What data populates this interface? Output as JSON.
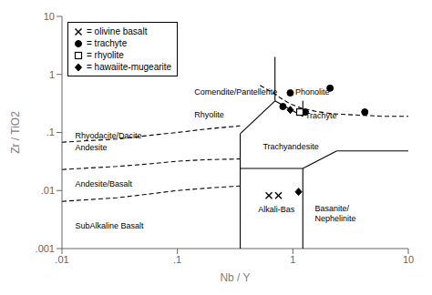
{
  "chart_data": {
    "type": "scatter",
    "xlabel": "Nb / Y",
    "ylabel": "Zr / TiO2",
    "log": true,
    "xlim": [
      0.01,
      10
    ],
    "ylim": [
      0.001,
      10
    ],
    "xticks": [
      {
        "value": 0.01,
        "label": ".01"
      },
      {
        "value": 0.1,
        "label": ".1"
      },
      1,
      10
    ],
    "yticks": [
      {
        "value": 0.001,
        "label": ".001"
      },
      {
        "value": 0.01,
        "label": ".01"
      },
      {
        "value": 0.1,
        "label": ".1"
      },
      1,
      10
    ],
    "grid": false,
    "legend": "upper left",
    "series": [
      {
        "type": "line",
        "line_style": "solid",
        "color": "#000000",
        "x": [
          0.35,
          0.35
        ],
        "values": [
          0.001,
          0.095
        ]
      },
      {
        "type": "line",
        "line_style": "solid",
        "color": "#000000",
        "x": [
          0.35,
          0.7
        ],
        "values": [
          0.095,
          0.35
        ]
      },
      {
        "type": "line",
        "line_style": "solid",
        "color": "#000000",
        "x": [
          0.7,
          0.7
        ],
        "values": [
          0.35,
          2.0
        ]
      },
      {
        "type": "line",
        "line_style": "solid",
        "color": "#000000",
        "x": [
          0.35,
          1.22
        ],
        "values": [
          0.024,
          0.024
        ]
      },
      {
        "type": "line",
        "line_style": "solid",
        "color": "#000000",
        "x": [
          1.22,
          1.22
        ],
        "values": [
          0.024,
          0.001
        ]
      },
      {
        "type": "line",
        "line_style": "solid",
        "color": "#000000",
        "x": [
          1.22,
          2.4
        ],
        "values": [
          0.024,
          0.048
        ]
      },
      {
        "type": "line",
        "line_style": "solid",
        "color": "#000000",
        "x": [
          2.4,
          10.0
        ],
        "values": [
          0.048,
          0.048
        ]
      },
      {
        "type": "line",
        "line_style": "solid",
        "color": "#000000",
        "x": [
          0.7,
          1.22
        ],
        "values": [
          0.35,
          0.19
        ]
      },
      {
        "type": "line",
        "line_style": "solid",
        "color": "#000000",
        "x": [
          1.22,
          1.22
        ],
        "values": [
          0.19,
          0.35
        ]
      },
      {
        "type": "line",
        "line_style": "dashed",
        "color": "#000000",
        "x": [
          0.52,
          0.6,
          0.7,
          0.8,
          0.95,
          1.2,
          1.6,
          2.2,
          3.5,
          6.0,
          10.0
        ],
        "values": [
          0.65,
          0.55,
          0.46,
          0.38,
          0.31,
          0.26,
          0.23,
          0.21,
          0.2,
          0.19,
          0.19
        ]
      },
      {
        "type": "line",
        "line_style": "dashed",
        "color": "#000000",
        "x": [
          0.01,
          0.03,
          0.06,
          0.1,
          0.18,
          0.35
        ],
        "values": [
          0.068,
          0.077,
          0.09,
          0.1,
          0.115,
          0.13
        ]
      },
      {
        "type": "line",
        "line_style": "dashed",
        "color": "#000000",
        "x": [
          0.01,
          0.03,
          0.06,
          0.1,
          0.18,
          0.35
        ],
        "values": [
          0.023,
          0.026,
          0.029,
          0.032,
          0.034,
          0.035
        ]
      },
      {
        "type": "line",
        "line_style": "dashed",
        "color": "#000000",
        "x": [
          0.01,
          0.03,
          0.06,
          0.1,
          0.18,
          0.35
        ],
        "values": [
          0.0065,
          0.0075,
          0.0088,
          0.01,
          0.011,
          0.012
        ]
      },
      {
        "name": "= olivine basalt",
        "type": "scatter",
        "marker": "x",
        "color": "#000000",
        "x": [
          0.62,
          0.75
        ],
        "values": [
          0.0082,
          0.0082
        ]
      },
      {
        "name": "= trachyte",
        "type": "scatter",
        "marker": "circle",
        "color": "#000000",
        "x": [
          0.95,
          0.82,
          1.28,
          2.1,
          4.2
        ],
        "values": [
          0.48,
          0.28,
          0.225,
          0.58,
          0.225
        ]
      },
      {
        "name": "= rhyolite",
        "type": "scatter",
        "marker": "open_square",
        "color": "#000000",
        "x": [
          1.15
        ],
        "values": [
          0.225
        ]
      },
      {
        "name": "= hawaiite-mugearite",
        "type": "scatter",
        "marker": "diamond",
        "color": "#000000",
        "x": [
          0.95,
          1.12
        ],
        "values": [
          0.245,
          0.0095
        ]
      }
    ],
    "annotations": [
      {
        "text": "Comendite/Pantellerite",
        "x": 0.14,
        "y": 0.5
      },
      {
        "text": "Phonolite",
        "x": 1.05,
        "y": 0.5
      },
      {
        "text": "Rhyolite",
        "x": 0.14,
        "y": 0.2
      },
      {
        "text": "Rhyodacite/Dacite",
        "x": 0.013,
        "y": 0.088
      },
      {
        "text": "Andesite",
        "x": 0.013,
        "y": 0.055
      },
      {
        "text": "Trachyandesite",
        "x": 0.55,
        "y": 0.058
      },
      {
        "text": "Andesite/Basalt",
        "x": 0.013,
        "y": 0.013
      },
      {
        "text": "SubAlkaline Basalt",
        "x": 0.013,
        "y": 0.0025
      },
      {
        "text": "Trachyte",
        "x": 1.28,
        "y": 0.195
      },
      {
        "text": "Alkali-Bas",
        "x": 0.5,
        "y": 0.0048
      },
      {
        "text": "Basanite/\nNephelinite",
        "x": 1.55,
        "y": 0.004
      }
    ]
  }
}
